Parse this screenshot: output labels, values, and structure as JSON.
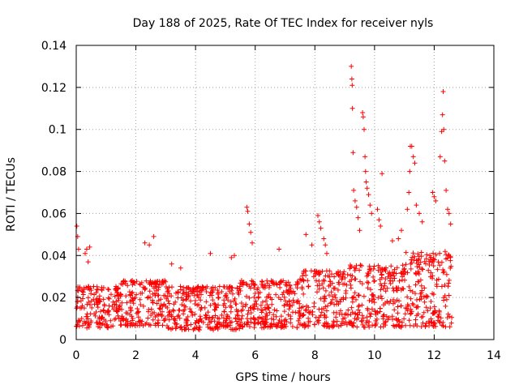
{
  "chart_data": {
    "type": "scatter",
    "title": "Day 188 of 2025, Rate Of TEC Index for receiver nyls",
    "xlabel": "GPS time / hours",
    "ylabel": "ROTI / TECUs",
    "xlim": [
      0,
      14
    ],
    "ylim": [
      0,
      0.14
    ],
    "x_ticks": [
      "0",
      "2",
      "4",
      "6",
      "8",
      "10",
      "12",
      "14"
    ],
    "y_ticks": [
      "0",
      "0.02",
      "0.04",
      "0.06",
      "0.08",
      "0.1",
      "0.12",
      "0.14"
    ],
    "grid": true,
    "marker": "+",
    "color": "#ff0000",
    "series": [
      {
        "name": "ROTI",
        "points": [
          [
            0.02,
            0.054
          ],
          [
            0.05,
            0.049
          ],
          [
            0.08,
            0.043
          ],
          [
            0.3,
            0.041
          ],
          [
            0.35,
            0.043
          ],
          [
            0.4,
            0.037
          ],
          [
            0.45,
            0.044
          ],
          [
            2.3,
            0.046
          ],
          [
            2.45,
            0.045
          ],
          [
            2.6,
            0.049
          ],
          [
            3.2,
            0.036
          ],
          [
            3.5,
            0.034
          ],
          [
            4.5,
            0.041
          ],
          [
            5.2,
            0.039
          ],
          [
            5.3,
            0.04
          ],
          [
            5.72,
            0.063
          ],
          [
            5.75,
            0.061
          ],
          [
            5.8,
            0.055
          ],
          [
            5.85,
            0.051
          ],
          [
            5.9,
            0.046
          ],
          [
            6.8,
            0.043
          ],
          [
            7.7,
            0.05
          ],
          [
            7.9,
            0.045
          ],
          [
            8.1,
            0.059
          ],
          [
            8.15,
            0.056
          ],
          [
            8.2,
            0.053
          ],
          [
            8.3,
            0.048
          ],
          [
            8.35,
            0.045
          ],
          [
            8.4,
            0.041
          ],
          [
            9.22,
            0.13
          ],
          [
            9.24,
            0.124
          ],
          [
            9.25,
            0.121
          ],
          [
            9.26,
            0.11
          ],
          [
            9.28,
            0.089
          ],
          [
            9.3,
            0.071
          ],
          [
            9.35,
            0.066
          ],
          [
            9.4,
            0.063
          ],
          [
            9.45,
            0.058
          ],
          [
            9.5,
            0.052
          ],
          [
            9.6,
            0.108
          ],
          [
            9.62,
            0.106
          ],
          [
            9.65,
            0.1
          ],
          [
            9.68,
            0.087
          ],
          [
            9.7,
            0.08
          ],
          [
            9.72,
            0.075
          ],
          [
            9.75,
            0.072
          ],
          [
            9.8,
            0.069
          ],
          [
            9.85,
            0.064
          ],
          [
            9.9,
            0.06
          ],
          [
            10.1,
            0.062
          ],
          [
            10.15,
            0.057
          ],
          [
            10.2,
            0.054
          ],
          [
            10.25,
            0.079
          ],
          [
            10.6,
            0.047
          ],
          [
            10.8,
            0.048
          ],
          [
            10.9,
            0.052
          ],
          [
            11.1,
            0.062
          ],
          [
            11.15,
            0.07
          ],
          [
            11.18,
            0.08
          ],
          [
            11.2,
            0.092
          ],
          [
            11.25,
            0.092
          ],
          [
            11.3,
            0.087
          ],
          [
            11.35,
            0.084
          ],
          [
            11.4,
            0.064
          ],
          [
            11.5,
            0.06
          ],
          [
            11.6,
            0.056
          ],
          [
            11.95,
            0.07
          ],
          [
            12.0,
            0.068
          ],
          [
            12.05,
            0.066
          ],
          [
            12.2,
            0.087
          ],
          [
            12.25,
            0.099
          ],
          [
            12.28,
            0.107
          ],
          [
            12.3,
            0.118
          ],
          [
            12.32,
            0.1
          ],
          [
            12.35,
            0.085
          ],
          [
            12.4,
            0.071
          ],
          [
            12.45,
            0.062
          ],
          [
            12.5,
            0.06
          ],
          [
            12.55,
            0.055
          ]
        ],
        "dense_band": {
          "x_range": [
            0,
            12.6
          ],
          "y_typical": [
            0.005,
            0.03
          ],
          "segments": [
            {
              "x": [
                0,
                1.5
              ],
              "y_base": 0.005,
              "y_top": 0.027
            },
            {
              "x": [
                1.5,
                3.0
              ],
              "y_base": 0.006,
              "y_top": 0.03
            },
            {
              "x": [
                3.0,
                5.5
              ],
              "y_base": 0.004,
              "y_top": 0.027
            },
            {
              "x": [
                5.5,
                7.5
              ],
              "y_base": 0.005,
              "y_top": 0.03
            },
            {
              "x": [
                7.5,
                9.0
              ],
              "y_base": 0.005,
              "y_top": 0.035
            },
            {
              "x": [
                9.0,
                11.0
              ],
              "y_base": 0.005,
              "y_top": 0.038
            },
            {
              "x": [
                11.0,
                12.6
              ],
              "y_base": 0.005,
              "y_top": 0.045
            }
          ]
        }
      }
    ]
  }
}
